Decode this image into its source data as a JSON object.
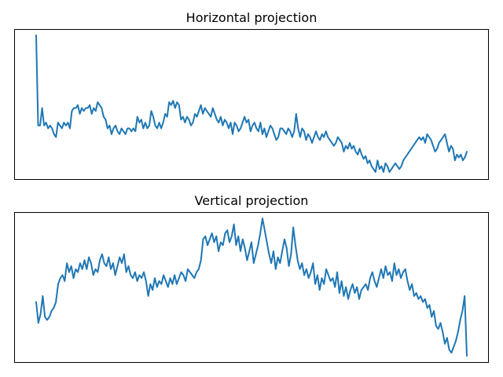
{
  "figure": {
    "background": "#ffffff",
    "line_color": "#1f77b4"
  },
  "chart_data": [
    {
      "type": "line",
      "title": "Horizontal projection",
      "xlabel": "",
      "ylabel": "",
      "xticks": false,
      "yticks": false,
      "grid": false,
      "series": [
        {
          "values": [
            1.0,
            0.38,
            0.38,
            0.5,
            0.38,
            0.4,
            0.36,
            0.38,
            0.36,
            0.32,
            0.3,
            0.4,
            0.38,
            0.36,
            0.4,
            0.38,
            0.4,
            0.36,
            0.48,
            0.5,
            0.5,
            0.52,
            0.46,
            0.5,
            0.48,
            0.5,
            0.5,
            0.52,
            0.46,
            0.5,
            0.48,
            0.54,
            0.52,
            0.5,
            0.44,
            0.42,
            0.36,
            0.38,
            0.32,
            0.36,
            0.38,
            0.34,
            0.32,
            0.36,
            0.34,
            0.32,
            0.36,
            0.36,
            0.34,
            0.36,
            0.34,
            0.44,
            0.4,
            0.42,
            0.36,
            0.4,
            0.36,
            0.38,
            0.48,
            0.44,
            0.38,
            0.36,
            0.4,
            0.36,
            0.4,
            0.46,
            0.44,
            0.54,
            0.52,
            0.55,
            0.5,
            0.54,
            0.52,
            0.42,
            0.44,
            0.4,
            0.44,
            0.42,
            0.38,
            0.4,
            0.46,
            0.44,
            0.48,
            0.52,
            0.46,
            0.5,
            0.48,
            0.46,
            0.44,
            0.5,
            0.46,
            0.42,
            0.4,
            0.44,
            0.38,
            0.42,
            0.4,
            0.36,
            0.4,
            0.32,
            0.4,
            0.38,
            0.34,
            0.36,
            0.4,
            0.44,
            0.4,
            0.42,
            0.34,
            0.38,
            0.4,
            0.36,
            0.34,
            0.4,
            0.32,
            0.36,
            0.3,
            0.34,
            0.38,
            0.36,
            0.32,
            0.28,
            0.3,
            0.36,
            0.36,
            0.34,
            0.32,
            0.36,
            0.34,
            0.3,
            0.34,
            0.46,
            0.36,
            0.3,
            0.36,
            0.34,
            0.28,
            0.32,
            0.3,
            0.26,
            0.3,
            0.34,
            0.3,
            0.28,
            0.32,
            0.3,
            0.34,
            0.3,
            0.28,
            0.26,
            0.24,
            0.26,
            0.3,
            0.28,
            0.26,
            0.2,
            0.24,
            0.22,
            0.26,
            0.22,
            0.24,
            0.2,
            0.18,
            0.22,
            0.18,
            0.15,
            0.17,
            0.12,
            0.14,
            0.1,
            0.08,
            0.06,
            0.14,
            0.08,
            0.1,
            0.06,
            0.12,
            0.1,
            0.06,
            0.08,
            0.1,
            0.12,
            0.1,
            0.08,
            0.1,
            0.14,
            0.16,
            0.18,
            0.2,
            0.22,
            0.24,
            0.26,
            0.28,
            0.3,
            0.28,
            0.3,
            0.26,
            0.32,
            0.3,
            0.28,
            0.24,
            0.2,
            0.22,
            0.26,
            0.28,
            0.3,
            0.32,
            0.26,
            0.2,
            0.24,
            0.22,
            0.14,
            0.18,
            0.16,
            0.18,
            0.14,
            0.16,
            0.2
          ]
        }
      ]
    },
    {
      "type": "line",
      "title": "Vertical projection",
      "xlabel": "",
      "ylabel": "",
      "xticks": false,
      "yticks": false,
      "grid": false,
      "series": [
        {
          "values": [
            0.4,
            0.26,
            0.32,
            0.44,
            0.3,
            0.28,
            0.3,
            0.34,
            0.36,
            0.4,
            0.52,
            0.56,
            0.58,
            0.54,
            0.66,
            0.6,
            0.64,
            0.56,
            0.62,
            0.6,
            0.66,
            0.62,
            0.68,
            0.62,
            0.7,
            0.66,
            0.58,
            0.62,
            0.6,
            0.68,
            0.72,
            0.66,
            0.64,
            0.7,
            0.62,
            0.66,
            0.58,
            0.64,
            0.7,
            0.66,
            0.72,
            0.6,
            0.64,
            0.58,
            0.56,
            0.6,
            0.54,
            0.58,
            0.56,
            0.6,
            0.54,
            0.44,
            0.52,
            0.48,
            0.56,
            0.5,
            0.54,
            0.52,
            0.58,
            0.54,
            0.5,
            0.56,
            0.52,
            0.58,
            0.52,
            0.56,
            0.6,
            0.58,
            0.54,
            0.62,
            0.6,
            0.58,
            0.56,
            0.6,
            0.62,
            0.68,
            0.82,
            0.84,
            0.78,
            0.82,
            0.86,
            0.8,
            0.84,
            0.74,
            0.8,
            0.78,
            0.86,
            0.88,
            0.8,
            0.84,
            0.92,
            0.78,
            0.84,
            0.74,
            0.82,
            0.76,
            0.68,
            0.74,
            0.8,
            0.66,
            0.72,
            0.78,
            0.86,
            0.96,
            0.88,
            0.8,
            0.72,
            0.66,
            0.74,
            0.62,
            0.7,
            0.66,
            0.74,
            0.82,
            0.76,
            0.64,
            0.72,
            0.9,
            0.78,
            0.68,
            0.62,
            0.66,
            0.58,
            0.62,
            0.56,
            0.6,
            0.66,
            0.52,
            0.58,
            0.48,
            0.56,
            0.52,
            0.62,
            0.58,
            0.54,
            0.56,
            0.5,
            0.6,
            0.46,
            0.54,
            0.44,
            0.5,
            0.42,
            0.48,
            0.52,
            0.46,
            0.5,
            0.42,
            0.48,
            0.5,
            0.52,
            0.48,
            0.56,
            0.6,
            0.54,
            0.5,
            0.56,
            0.62,
            0.56,
            0.64,
            0.58,
            0.6,
            0.54,
            0.66,
            0.58,
            0.62,
            0.56,
            0.6,
            0.62,
            0.54,
            0.48,
            0.52,
            0.44,
            0.46,
            0.42,
            0.44,
            0.4,
            0.42,
            0.36,
            0.38,
            0.3,
            0.34,
            0.24,
            0.22,
            0.26,
            0.2,
            0.12,
            0.16,
            0.08,
            0.06,
            0.1,
            0.14,
            0.2,
            0.28,
            0.34,
            0.44,
            0.04
          ]
        }
      ]
    }
  ]
}
